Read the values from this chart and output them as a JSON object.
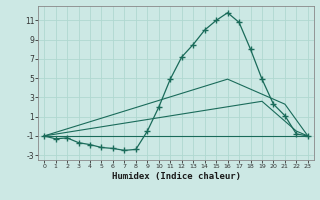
{
  "xlabel": "Humidex (Indice chaleur)",
  "background_color": "#cce8e4",
  "grid_color": "#b0d8d0",
  "line_color": "#1a6b5a",
  "main_line": {
    "x": [
      0,
      1,
      2,
      3,
      4,
      5,
      6,
      7,
      8,
      9,
      10,
      11,
      12,
      13,
      14,
      15,
      16,
      17,
      18,
      19,
      20,
      21,
      22,
      23
    ],
    "y": [
      -1.0,
      -1.3,
      -1.2,
      -1.7,
      -1.9,
      -2.2,
      -2.3,
      -2.5,
      -2.4,
      -0.5,
      2.0,
      4.9,
      7.2,
      8.5,
      10.0,
      11.0,
      11.8,
      10.8,
      8.0,
      4.9,
      2.3,
      1.1,
      -0.8,
      -1.0
    ]
  },
  "flat_line": {
    "x": [
      0,
      23
    ],
    "y": [
      -1.0,
      -1.0
    ]
  },
  "upper_triangle": {
    "x": [
      0,
      16,
      21,
      23
    ],
    "y": [
      -1.0,
      4.9,
      2.3,
      -1.0
    ]
  },
  "lower_triangle": {
    "x": [
      0,
      19,
      22,
      23
    ],
    "y": [
      -1.0,
      2.6,
      -0.5,
      -1.0
    ]
  },
  "xlim": [
    -0.5,
    23.5
  ],
  "ylim": [
    -3.5,
    12.5
  ],
  "yticks": [
    -3,
    -1,
    1,
    3,
    5,
    7,
    9,
    11
  ],
  "xticks": [
    0,
    1,
    2,
    3,
    4,
    5,
    6,
    7,
    8,
    9,
    10,
    11,
    12,
    13,
    14,
    15,
    16,
    17,
    18,
    19,
    20,
    21,
    22,
    23
  ]
}
